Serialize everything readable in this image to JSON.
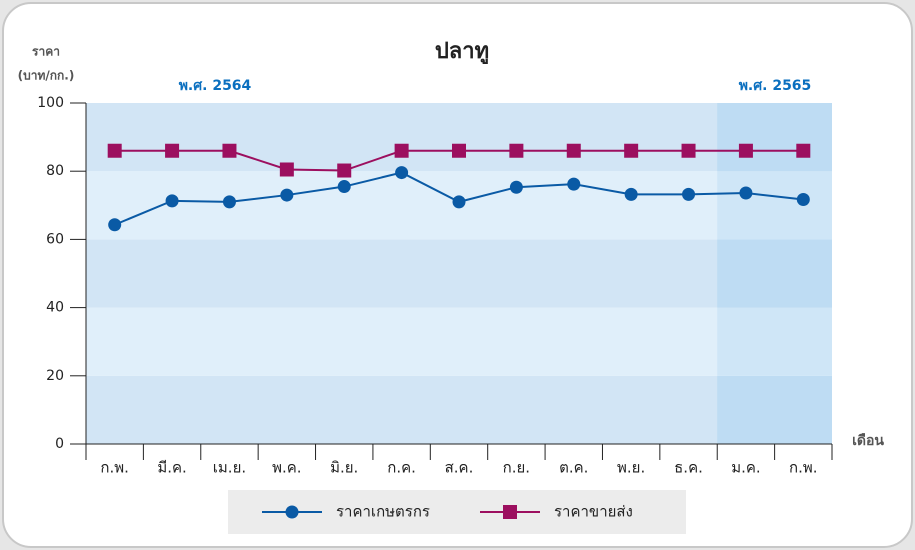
{
  "chart_data": {
    "type": "line",
    "title": "ปลาทู",
    "y_label": [
      "ราคา",
      "(บาท/กก.)"
    ],
    "x_label": "เดือน",
    "annotations": [
      "พ.ศ. 2564",
      "พ.ศ. 2565"
    ],
    "categories": [
      "ก.พ.",
      "มี.ค.",
      "เม.ย.",
      "พ.ค.",
      "มิ.ย.",
      "ก.ค.",
      "ส.ค.",
      "ก.ย.",
      "ต.ค.",
      "พ.ย.",
      "ธ.ค.",
      "ม.ค.",
      "ก.พ."
    ],
    "series": [
      {
        "name": "ราคาเกษตรกร",
        "color": "#0a5aa5",
        "marker": "circle",
        "values": [
          64.3,
          71.3,
          71,
          73,
          75.5,
          79.6,
          71,
          75.3,
          76.2,
          73.2,
          73.2,
          73.6,
          71.7
        ]
      },
      {
        "name": "ราคาขายส่ง",
        "color": "#9c0f5f",
        "marker": "square",
        "values": [
          86,
          86,
          86,
          80.5,
          80.2,
          86,
          86,
          86,
          86,
          86,
          86,
          86,
          86
        ]
      }
    ],
    "ylim": [
      0,
      100
    ],
    "yticks": [
      0,
      20,
      40,
      60,
      80,
      100
    ],
    "grid": true
  }
}
